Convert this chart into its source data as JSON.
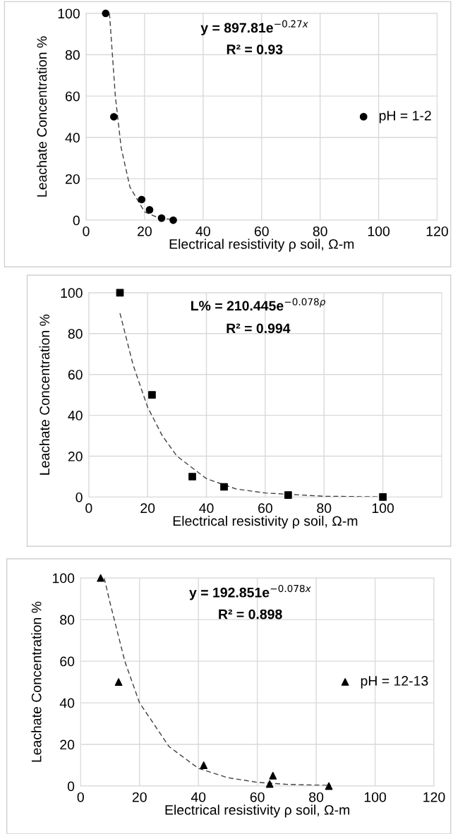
{
  "chart_data": [
    {
      "type": "scatter",
      "xlabel": "Electrical resistivity ρ soil, Ω-m",
      "ylabel": "Leachate Concentration %",
      "xlim": [
        0,
        120
      ],
      "xticks": [
        0,
        20,
        40,
        60,
        80,
        100,
        120
      ],
      "ylim": [
        0,
        100
      ],
      "yticks": [
        0,
        20,
        40,
        60,
        80,
        100
      ],
      "grid": true,
      "legend": "right",
      "annotations": [
        "y = 897.81e$^{−0.27x}$",
        "R² = 0.93"
      ],
      "series": [
        {
          "type": "scatter",
          "name": "pH = 1-2",
          "marker": "circle",
          "color": "#000000",
          "x": [
            6.7,
            9.5,
            19,
            21.7,
            25.8,
            29.8
          ],
          "values": [
            100,
            50,
            10,
            5,
            1,
            0
          ]
        },
        {
          "type": "line",
          "line_style": "dashed",
          "marker": "none",
          "color": "#404040",
          "x": [
            8,
            10,
            12,
            15,
            20,
            25,
            30
          ],
          "values": [
            100,
            60,
            35,
            16,
            4,
            1,
            0.3
          ]
        }
      ]
    },
    {
      "type": "scatter",
      "xlabel": "Electrical resistivity ρ soil, Ω-m",
      "ylabel": "Leachate Concentration %",
      "xlim": [
        0,
        120
      ],
      "xticks": [
        0,
        20,
        40,
        60,
        80,
        100
      ],
      "ylim": [
        0,
        100
      ],
      "yticks": [
        0,
        20,
        40,
        60,
        80,
        100
      ],
      "grid": true,
      "annotations": [
        "L% = 210.445e$^{−0.078ρ}$",
        "R² = 0.994"
      ],
      "series": [
        {
          "type": "scatter",
          "marker": "square",
          "color": "#000000",
          "x": [
            10.6,
            21.5,
            35.2,
            46,
            67.8,
            100
          ],
          "values": [
            100,
            50,
            10,
            5,
            1,
            0
          ]
        },
        {
          "type": "line",
          "line_style": "dashed",
          "marker": "none",
          "color": "#404040",
          "x": [
            10.6,
            15,
            20,
            25,
            30,
            40,
            50,
            60,
            80,
            100
          ],
          "values": [
            90,
            65,
            44,
            30,
            20,
            9,
            4,
            2,
            0.4,
            0.1
          ]
        }
      ]
    },
    {
      "type": "scatter",
      "xlabel": "Electrical resistivity ρ soil, Ω-m",
      "ylabel": "Leachate Concentration %",
      "xlim": [
        0,
        120
      ],
      "xticks": [
        0,
        20,
        40,
        60,
        80,
        100,
        120
      ],
      "ylim": [
        0,
        100
      ],
      "yticks": [
        0,
        20,
        40,
        60,
        80,
        100
      ],
      "grid": true,
      "legend": "right",
      "annotations": [
        "y = 192.851e$^{−0.078x}$",
        "R² = 0.898"
      ],
      "series": [
        {
          "type": "scatter",
          "name": "pH = 12-13",
          "marker": "triangle",
          "color": "#000000",
          "x": [
            6.8,
            12.9,
            41.8,
            64.2,
            65.3,
            84.3
          ],
          "values": [
            100,
            50,
            10,
            1,
            5,
            0
          ]
        },
        {
          "type": "line",
          "line_style": "dashed",
          "marker": "none",
          "color": "#404040",
          "x": [
            8,
            10,
            15,
            20,
            30,
            40,
            50,
            60,
            70,
            85
          ],
          "values": [
            100,
            88,
            60,
            40,
            19,
            8.5,
            4,
            1.8,
            0.8,
            0.3
          ]
        }
      ]
    }
  ]
}
